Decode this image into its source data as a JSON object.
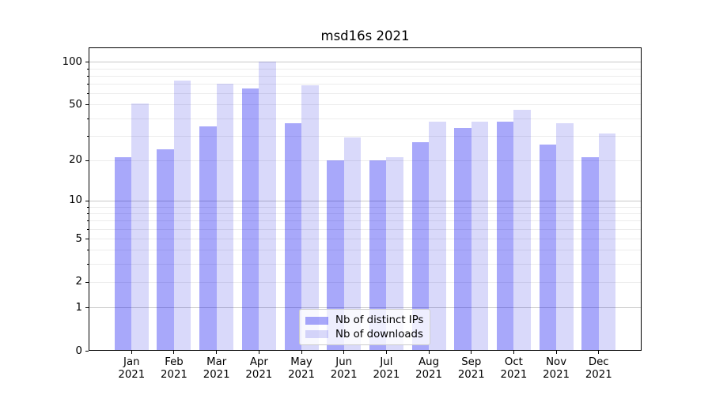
{
  "chart_data": {
    "type": "bar",
    "title": "msd16s 2021",
    "categories": [
      "Jan",
      "Feb",
      "Mar",
      "Apr",
      "May",
      "Jun",
      "Jul",
      "Aug",
      "Sep",
      "Oct",
      "Nov",
      "Dec"
    ],
    "category_year": "2021",
    "series": [
      {
        "name": "Nb of distinct IPs",
        "color": "rgba(0,0,240,0.34)",
        "values": [
          21,
          24,
          35,
          65,
          37,
          20,
          20,
          27,
          34,
          38,
          26,
          21
        ]
      },
      {
        "name": "Nb of downloads",
        "color": "rgba(0,0,224,0.15)",
        "values": [
          51,
          74,
          70,
          100,
          68,
          29,
          21,
          38,
          38,
          46,
          37,
          31
        ]
      }
    ],
    "xlabel": "",
    "ylabel": "",
    "y_scale": "log1p",
    "ylim": [
      0,
      126
    ],
    "y_ticks_labeled": [
      0,
      1,
      2,
      5,
      10,
      20,
      50,
      100
    ],
    "grid": "on",
    "grid_major_values": [
      1,
      10,
      100
    ],
    "grid_minor_values": [
      2,
      3,
      4,
      5,
      6,
      7,
      8,
      9,
      20,
      30,
      40,
      50,
      60,
      70,
      80,
      90
    ],
    "legend_position": "lower center",
    "colors": {
      "major_grid": "#c8c8c8",
      "minor_grid": "#ececec",
      "spine": "#000000",
      "text": "#000000"
    }
  }
}
